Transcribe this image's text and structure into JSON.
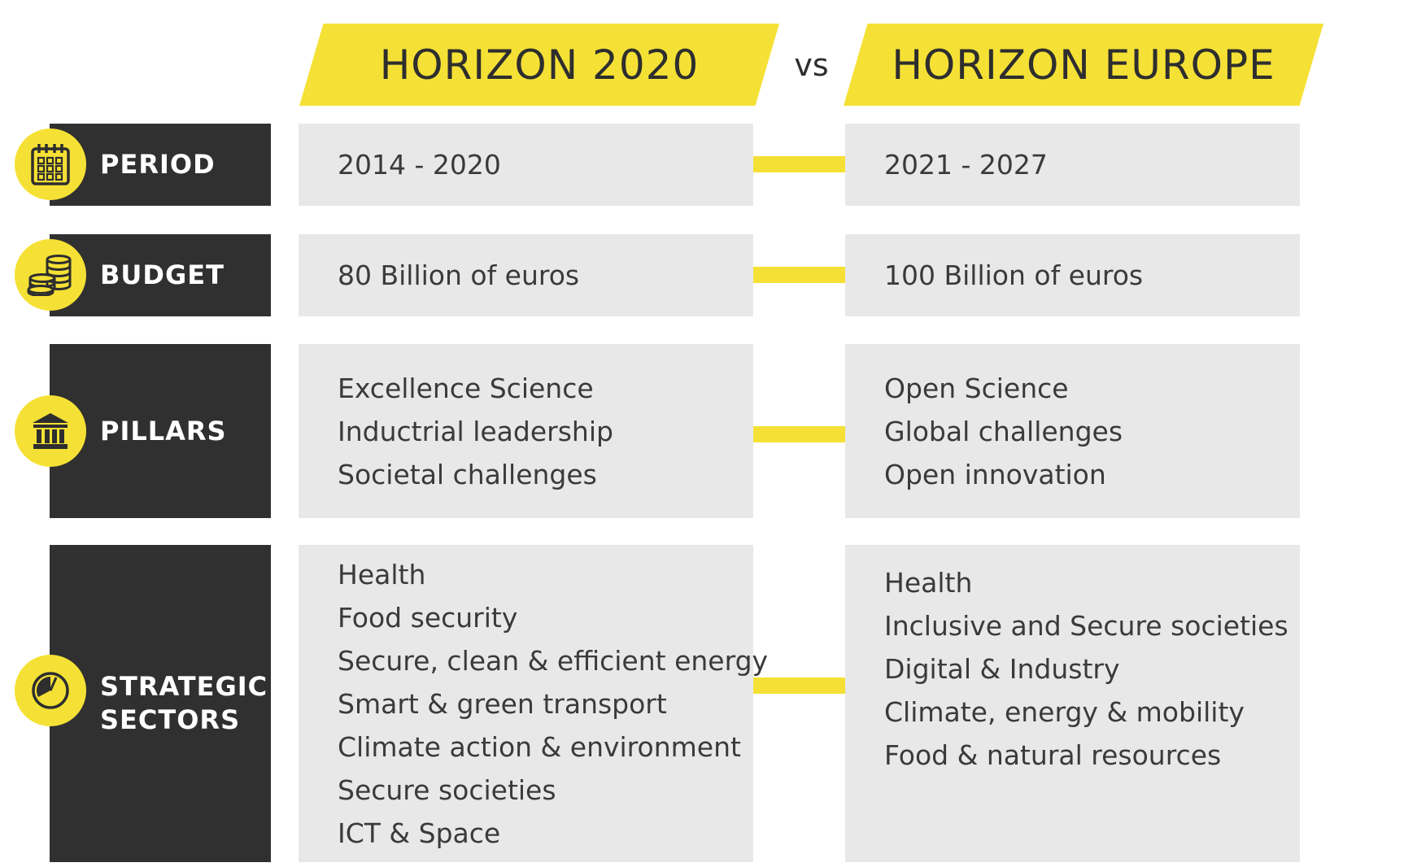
{
  "header": {
    "left_title": "HORIZON 2020",
    "vs": "vs",
    "right_title": "HORIZON EUROPE"
  },
  "colors": {
    "accent": "#f5e135",
    "label_bg": "#303030",
    "cell_bg": "#e8e8e8",
    "text_dark": "#2e2e2e"
  },
  "rows": [
    {
      "label_lines": [
        "PERIOD"
      ],
      "icon": "calendar-icon",
      "left_lines": [
        "2014 - 2020"
      ],
      "right_lines": [
        "2021 - 2027"
      ]
    },
    {
      "label_lines": [
        "BUDGET"
      ],
      "icon": "coins-icon",
      "left_lines": [
        "80 Billion of euros"
      ],
      "right_lines": [
        "100 Billion of euros"
      ]
    },
    {
      "label_lines": [
        "PILLARS"
      ],
      "icon": "pillars-building-icon",
      "left_lines": [
        "Excellence Science",
        "Inductrial leadership",
        "Societal challenges"
      ],
      "right_lines": [
        "Open Science",
        "Global challenges",
        "Open innovation"
      ]
    },
    {
      "label_lines": [
        "STRATEGIC",
        "SECTORS"
      ],
      "icon": "pie-chart-icon",
      "left_lines": [
        "Health",
        "Food security",
        "Secure, clean & efficient energy",
        "Smart & green transport",
        "Climate action & environment",
        "Secure societies",
        "ICT & Space"
      ],
      "right_lines": [
        "Health",
        "Inclusive and Secure societies",
        "Digital & Industry",
        "Climate, energy & mobility",
        "Food & natural resources"
      ]
    }
  ]
}
